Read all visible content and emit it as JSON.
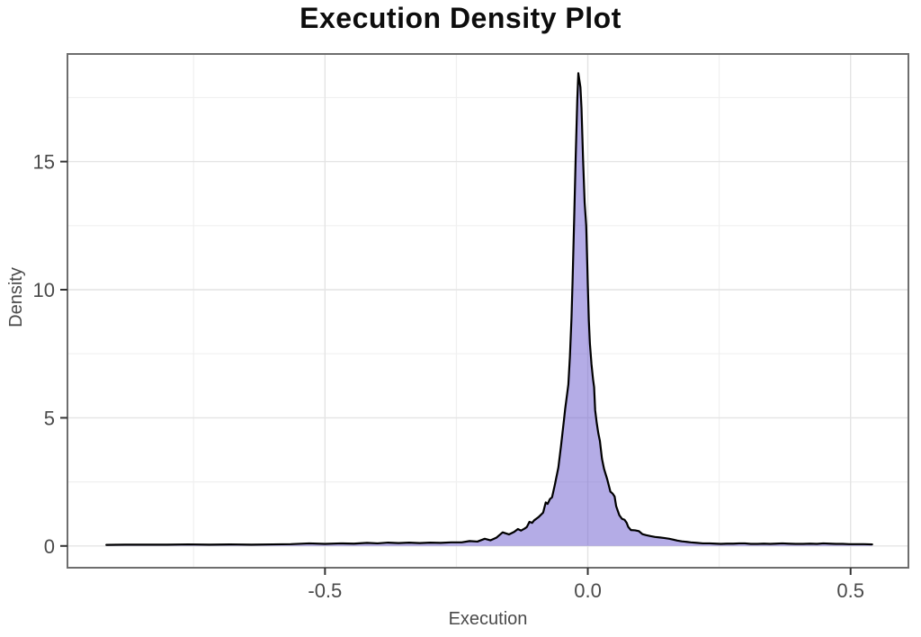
{
  "title": "Execution Density Plot",
  "colors": {
    "background": "#ffffff",
    "title_text": "#0d0d0d",
    "axis_text": "#4a4a4a",
    "panel_border": "#6e6e6e",
    "tick_mark": "#333333",
    "grid_major": "#e4e4e4",
    "grid_minor": "#f0f0f0",
    "density_fill": "#6a5acd",
    "density_line": "#000000"
  },
  "chart_data": {
    "type": "area",
    "subtype": "kernel-density",
    "title": "Execution Density Plot",
    "xlabel": "Execution",
    "ylabel": "Density",
    "xlim": [
      -0.99,
      0.61
    ],
    "ylim": [
      -0.85,
      19.2
    ],
    "x_ticks": [
      -0.5,
      0.0,
      0.5
    ],
    "x_tick_labels": [
      "-0.5",
      "0.0",
      "0.5"
    ],
    "x_minor_ticks": [
      -0.75,
      -0.25,
      0.25
    ],
    "y_ticks": [
      0,
      5,
      10,
      15
    ],
    "y_tick_labels": [
      "0",
      "5",
      "10",
      "15"
    ],
    "y_minor_ticks": [
      2.5,
      7.5,
      12.5,
      17.5
    ],
    "grid": true,
    "legend": "none",
    "fill_opacity": 0.5,
    "peak": {
      "x": -0.018,
      "density": 18.45
    },
    "data_range": {
      "x_min": -0.916,
      "x_max": 0.541
    },
    "series": [
      {
        "name": "density",
        "points": [
          [
            -0.916,
            0.04
          ],
          [
            -0.88,
            0.05
          ],
          [
            -0.84,
            0.05
          ],
          [
            -0.8,
            0.05
          ],
          [
            -0.76,
            0.06
          ],
          [
            -0.72,
            0.05
          ],
          [
            -0.68,
            0.06
          ],
          [
            -0.64,
            0.05
          ],
          [
            -0.6,
            0.06
          ],
          [
            -0.565,
            0.07
          ],
          [
            -0.53,
            0.1
          ],
          [
            -0.5,
            0.08
          ],
          [
            -0.47,
            0.1
          ],
          [
            -0.445,
            0.09
          ],
          [
            -0.42,
            0.12
          ],
          [
            -0.4,
            0.1
          ],
          [
            -0.38,
            0.13
          ],
          [
            -0.36,
            0.11
          ],
          [
            -0.34,
            0.13
          ],
          [
            -0.32,
            0.11
          ],
          [
            -0.3,
            0.13
          ],
          [
            -0.28,
            0.12
          ],
          [
            -0.26,
            0.14
          ],
          [
            -0.24,
            0.14
          ],
          [
            -0.225,
            0.19
          ],
          [
            -0.21,
            0.17
          ],
          [
            -0.196,
            0.28
          ],
          [
            -0.185,
            0.22
          ],
          [
            -0.174,
            0.32
          ],
          [
            -0.162,
            0.53
          ],
          [
            -0.15,
            0.45
          ],
          [
            -0.14,
            0.55
          ],
          [
            -0.133,
            0.66
          ],
          [
            -0.127,
            0.6
          ],
          [
            -0.12,
            0.68
          ],
          [
            -0.116,
            0.74
          ],
          [
            -0.111,
            0.94
          ],
          [
            -0.106,
            0.9
          ],
          [
            -0.102,
            1.0
          ],
          [
            -0.094,
            1.12
          ],
          [
            -0.085,
            1.3
          ],
          [
            -0.08,
            1.7
          ],
          [
            -0.0765,
            1.64
          ],
          [
            -0.072,
            1.83
          ],
          [
            -0.068,
            1.9
          ],
          [
            -0.063,
            2.36
          ],
          [
            -0.056,
            3.06
          ],
          [
            -0.051,
            3.9
          ],
          [
            -0.046,
            4.8
          ],
          [
            -0.043,
            5.35
          ],
          [
            -0.037,
            6.3
          ],
          [
            -0.034,
            7.4
          ],
          [
            -0.031,
            8.9
          ],
          [
            -0.029,
            10.3
          ],
          [
            -0.026,
            12.7
          ],
          [
            -0.023,
            15.2
          ],
          [
            -0.02,
            17.4
          ],
          [
            -0.018,
            18.45
          ],
          [
            -0.014,
            17.9
          ],
          [
            -0.012,
            17.1
          ],
          [
            -0.009,
            15.1
          ],
          [
            -0.006,
            13.4
          ],
          [
            -0.003,
            12.5
          ],
          [
            -0.001,
            11.0
          ],
          [
            0.0,
            10.2
          ],
          [
            0.002,
            8.8
          ],
          [
            0.004,
            7.9
          ],
          [
            0.007,
            7.1
          ],
          [
            0.01,
            6.5
          ],
          [
            0.012,
            6.2
          ],
          [
            0.014,
            5.3
          ],
          [
            0.017,
            4.8
          ],
          [
            0.02,
            4.4
          ],
          [
            0.023,
            4.1
          ],
          [
            0.027,
            3.4
          ],
          [
            0.031,
            3.0
          ],
          [
            0.037,
            2.6
          ],
          [
            0.043,
            2.12
          ],
          [
            0.047,
            2.05
          ],
          [
            0.051,
            1.93
          ],
          [
            0.054,
            1.55
          ],
          [
            0.06,
            1.2
          ],
          [
            0.065,
            1.06
          ],
          [
            0.07,
            1.02
          ],
          [
            0.074,
            0.9
          ],
          [
            0.077,
            0.74
          ],
          [
            0.082,
            0.62
          ],
          [
            0.09,
            0.61
          ],
          [
            0.097,
            0.58
          ],
          [
            0.104,
            0.46
          ],
          [
            0.111,
            0.42
          ],
          [
            0.12,
            0.38
          ],
          [
            0.128,
            0.35
          ],
          [
            0.137,
            0.33
          ],
          [
            0.145,
            0.31
          ],
          [
            0.155,
            0.28
          ],
          [
            0.162,
            0.25
          ],
          [
            0.17,
            0.21
          ],
          [
            0.179,
            0.18
          ],
          [
            0.188,
            0.16
          ],
          [
            0.196,
            0.14
          ],
          [
            0.208,
            0.12
          ],
          [
            0.219,
            0.1
          ],
          [
            0.232,
            0.1
          ],
          [
            0.243,
            0.09
          ],
          [
            0.253,
            0.08
          ],
          [
            0.265,
            0.09
          ],
          [
            0.277,
            0.09
          ],
          [
            0.288,
            0.1
          ],
          [
            0.299,
            0.1
          ],
          [
            0.31,
            0.08
          ],
          [
            0.323,
            0.08
          ],
          [
            0.335,
            0.09
          ],
          [
            0.347,
            0.08
          ],
          [
            0.358,
            0.09
          ],
          [
            0.37,
            0.1
          ],
          [
            0.381,
            0.09
          ],
          [
            0.395,
            0.08
          ],
          [
            0.41,
            0.08
          ],
          [
            0.423,
            0.09
          ],
          [
            0.436,
            0.08
          ],
          [
            0.448,
            0.1
          ],
          [
            0.46,
            0.09
          ],
          [
            0.472,
            0.08
          ],
          [
            0.485,
            0.08
          ],
          [
            0.497,
            0.07
          ],
          [
            0.51,
            0.07
          ],
          [
            0.525,
            0.07
          ],
          [
            0.541,
            0.06
          ]
        ]
      }
    ]
  }
}
